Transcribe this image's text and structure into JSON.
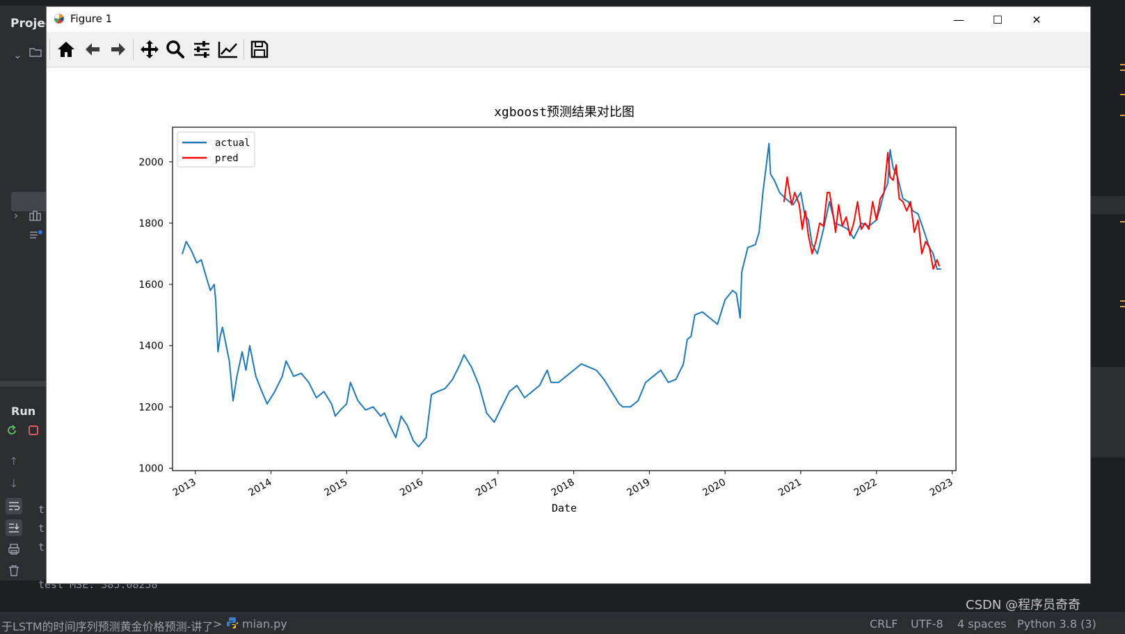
{
  "ide": {
    "project_label": "Projec",
    "run_label": "Run",
    "console_partial": [
      "t",
      "t",
      "t"
    ],
    "console_last_line": "test  MSE: 385.08258",
    "breadcrumb": "于LSTM的时间序列预测黄金价格预测-讲了",
    "breadcrumb_sep": ">",
    "file_name": "mian.py",
    "status_crlf": "CRLF",
    "status_encoding": "UTF-8",
    "status_indent": "4 spaces",
    "status_interpreter": "Python 3.8 (3)",
    "watermark": "CSDN @程序员奇奇"
  },
  "window": {
    "title": "Figure 1",
    "minimize_glyph": "—",
    "maximize_glyph": "☐",
    "close_glyph": "✕"
  },
  "toolbar": {
    "buttons": [
      "home-icon",
      "back-arrow-icon",
      "forward-arrow-icon",
      "pan-icon",
      "zoom-icon",
      "configure-subplots-icon",
      "edit-axis-icon",
      "save-icon"
    ]
  },
  "colors": {
    "actual": "#1f77b4",
    "pred": "#ff0000",
    "ide_bg": "#2b2d30"
  },
  "chart_data": {
    "type": "line",
    "title": "xgboost预测结果对比图",
    "xlabel": "Date",
    "ylabel": "",
    "xlim": [
      2012.7,
      2023.05
    ],
    "ylim": [
      992,
      2113
    ],
    "x_ticks": [
      "2013",
      "2014",
      "2015",
      "2016",
      "2017",
      "2018",
      "2019",
      "2020",
      "2021",
      "2022",
      "2023"
    ],
    "y_ticks": [
      "1000",
      "1200",
      "1400",
      "1600",
      "1800",
      "2000"
    ],
    "legend": {
      "placement": "upper-left",
      "entries": [
        "actual",
        "pred"
      ]
    },
    "grid": false,
    "series": [
      {
        "name": "actual",
        "x": [
          2012.83,
          2012.88,
          2012.95,
          2013.02,
          2013.08,
          2013.15,
          2013.2,
          2013.25,
          2013.27,
          2013.3,
          2013.33,
          2013.36,
          2013.45,
          2013.5,
          2013.55,
          2013.62,
          2013.67,
          2013.72,
          2013.8,
          2013.88,
          2013.95,
          2014.05,
          2014.15,
          2014.2,
          2014.3,
          2014.4,
          2014.5,
          2014.6,
          2014.7,
          2014.8,
          2014.85,
          2014.92,
          2015.0,
          2015.05,
          2015.15,
          2015.25,
          2015.35,
          2015.45,
          2015.5,
          2015.55,
          2015.65,
          2015.72,
          2015.8,
          2015.88,
          2015.95,
          2016.05,
          2016.12,
          2016.2,
          2016.3,
          2016.4,
          2016.5,
          2016.55,
          2016.65,
          2016.75,
          2016.85,
          2016.95,
          2017.05,
          2017.15,
          2017.25,
          2017.35,
          2017.45,
          2017.55,
          2017.65,
          2017.7,
          2017.8,
          2017.9,
          2018.0,
          2018.1,
          2018.2,
          2018.3,
          2018.4,
          2018.5,
          2018.6,
          2018.65,
          2018.75,
          2018.85,
          2018.95,
          2019.05,
          2019.15,
          2019.25,
          2019.35,
          2019.45,
          2019.5,
          2019.55,
          2019.6,
          2019.7,
          2019.8,
          2019.9,
          2020.0,
          2020.1,
          2020.15,
          2020.2,
          2020.22,
          2020.3,
          2020.4,
          2020.45,
          2020.5,
          2020.58,
          2020.6,
          2020.65,
          2020.72,
          2020.8,
          2020.9,
          2021.0,
          2021.05,
          2021.1,
          2021.15,
          2021.22,
          2021.3,
          2021.38,
          2021.45,
          2021.55,
          2021.62,
          2021.7,
          2021.8,
          2021.9,
          2022.0,
          2022.05,
          2022.1,
          2022.15,
          2022.18,
          2022.22,
          2022.28,
          2022.35,
          2022.42,
          2022.48,
          2022.55,
          2022.62,
          2022.7,
          2022.75,
          2022.8,
          2022.85
        ],
        "y": [
          1700,
          1740,
          1710,
          1670,
          1680,
          1620,
          1580,
          1600,
          1550,
          1380,
          1430,
          1460,
          1350,
          1220,
          1300,
          1380,
          1320,
          1400,
          1300,
          1250,
          1210,
          1250,
          1300,
          1350,
          1300,
          1310,
          1280,
          1230,
          1250,
          1210,
          1170,
          1190,
          1210,
          1280,
          1220,
          1190,
          1200,
          1170,
          1180,
          1150,
          1100,
          1170,
          1140,
          1090,
          1070,
          1100,
          1240,
          1250,
          1260,
          1290,
          1340,
          1370,
          1330,
          1270,
          1180,
          1150,
          1200,
          1250,
          1270,
          1230,
          1250,
          1270,
          1320,
          1280,
          1280,
          1300,
          1320,
          1340,
          1330,
          1320,
          1290,
          1250,
          1210,
          1200,
          1200,
          1220,
          1280,
          1300,
          1320,
          1280,
          1290,
          1340,
          1420,
          1430,
          1500,
          1510,
          1490,
          1470,
          1550,
          1580,
          1570,
          1490,
          1640,
          1720,
          1730,
          1770,
          1900,
          2060,
          1960,
          1940,
          1900,
          1880,
          1860,
          1900,
          1830,
          1810,
          1730,
          1700,
          1780,
          1870,
          1800,
          1790,
          1780,
          1750,
          1800,
          1790,
          1810,
          1850,
          1900,
          1930,
          2040,
          1980,
          1950,
          1880,
          1870,
          1840,
          1830,
          1780,
          1720,
          1700,
          1650,
          1650
        ]
      },
      {
        "name": "pred",
        "x": [
          2020.78,
          2020.82,
          2020.88,
          2020.92,
          2020.98,
          2021.02,
          2021.06,
          2021.1,
          2021.15,
          2021.2,
          2021.25,
          2021.3,
          2021.35,
          2021.38,
          2021.42,
          2021.46,
          2021.5,
          2021.55,
          2021.6,
          2021.65,
          2021.7,
          2021.75,
          2021.8,
          2021.85,
          2021.9,
          2021.95,
          2022.0,
          2022.05,
          2022.1,
          2022.15,
          2022.18,
          2022.22,
          2022.26,
          2022.3,
          2022.35,
          2022.4,
          2022.45,
          2022.5,
          2022.55,
          2022.6,
          2022.65,
          2022.7,
          2022.75,
          2022.8,
          2022.83
        ],
        "y": [
          1870,
          1950,
          1860,
          1900,
          1860,
          1780,
          1840,
          1760,
          1700,
          1740,
          1800,
          1790,
          1900,
          1900,
          1840,
          1770,
          1860,
          1790,
          1820,
          1760,
          1800,
          1870,
          1780,
          1800,
          1780,
          1870,
          1810,
          1880,
          1900,
          2030,
          1950,
          1940,
          1990,
          1880,
          1870,
          1840,
          1870,
          1770,
          1810,
          1700,
          1740,
          1720,
          1650,
          1680,
          1660
        ]
      }
    ]
  }
}
